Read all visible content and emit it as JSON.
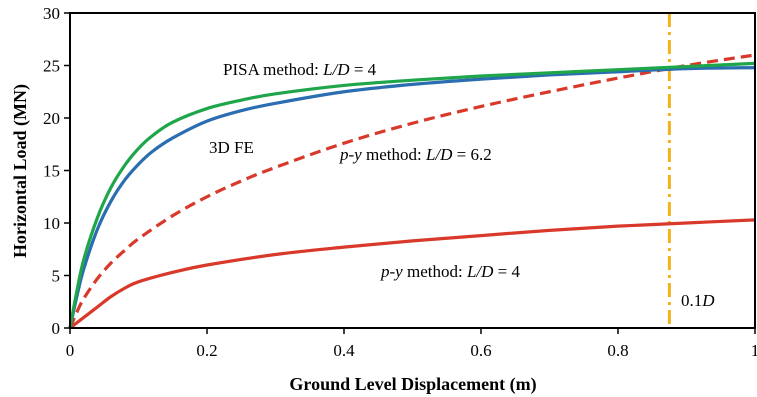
{
  "chart_data": {
    "type": "line",
    "title": "",
    "xlabel": "Ground Level Displacement (m)",
    "ylabel": "Horizontal Load (MN)",
    "xlim": [
      0,
      1
    ],
    "ylim": [
      0,
      30
    ],
    "xticks": [
      0,
      0.2,
      0.4,
      0.6,
      0.8,
      1
    ],
    "xtick_labels": [
      "0",
      "0.2",
      "0.4",
      "0.6",
      "0.8",
      "1"
    ],
    "yticks": [
      0,
      5,
      10,
      15,
      20,
      25,
      30
    ],
    "ytick_labels": [
      "0",
      "5",
      "10",
      "15",
      "20",
      "25",
      "30"
    ],
    "grid": false,
    "legend": "none",
    "series": [
      {
        "key": "pisa",
        "color": "#1fa64a",
        "style": "solid",
        "x": [
          0,
          0.01,
          0.02,
          0.04,
          0.06,
          0.08,
          0.1,
          0.12,
          0.15,
          0.2,
          0.25,
          0.3,
          0.4,
          0.5,
          0.6,
          0.7,
          0.8,
          0.9,
          1.0
        ],
        "y": [
          0,
          3.5,
          6.5,
          10.5,
          13.4,
          15.5,
          17.1,
          18.3,
          19.6,
          20.9,
          21.7,
          22.3,
          23.1,
          23.6,
          24.0,
          24.3,
          24.6,
          24.9,
          25.2
        ]
      },
      {
        "key": "fe3d",
        "color": "#2a6db1",
        "style": "solid",
        "x": [
          0,
          0.01,
          0.02,
          0.04,
          0.06,
          0.08,
          0.1,
          0.12,
          0.15,
          0.2,
          0.25,
          0.3,
          0.4,
          0.5,
          0.6,
          0.7,
          0.8,
          0.9,
          1.0
        ],
        "y": [
          0,
          3.0,
          5.6,
          9.4,
          12.1,
          14.1,
          15.6,
          16.8,
          18.1,
          19.7,
          20.7,
          21.4,
          22.5,
          23.2,
          23.7,
          24.1,
          24.4,
          24.7,
          24.8
        ]
      },
      {
        "key": "py62",
        "color": "#d9392b",
        "style": "dashed",
        "x": [
          0,
          0.01,
          0.02,
          0.04,
          0.06,
          0.08,
          0.1,
          0.15,
          0.2,
          0.25,
          0.3,
          0.4,
          0.5,
          0.6,
          0.7,
          0.8,
          0.9,
          1.0
        ],
        "y": [
          0,
          1.5,
          2.8,
          4.7,
          6.2,
          7.4,
          8.5,
          10.7,
          12.5,
          14.0,
          15.3,
          17.6,
          19.5,
          21.1,
          22.5,
          23.8,
          25.0,
          26.0
        ]
      },
      {
        "key": "py4",
        "color": "#d9392b",
        "style": "solid",
        "x": [
          0,
          0.01,
          0.02,
          0.04,
          0.06,
          0.08,
          0.1,
          0.15,
          0.2,
          0.3,
          0.4,
          0.5,
          0.6,
          0.7,
          0.8,
          0.9,
          1.0
        ],
        "y": [
          0,
          0.5,
          1.0,
          2.0,
          3.0,
          3.8,
          4.4,
          5.3,
          6.0,
          7.0,
          7.7,
          8.3,
          8.8,
          9.3,
          9.7,
          10.0,
          10.3
        ]
      }
    ],
    "reference_line": {
      "x": 0.875,
      "color": "#f2b21c",
      "style": "dash-dot"
    },
    "annotations": {
      "pisa": {
        "text": "PISA method: ",
        "ratio": "L/D",
        "value": " = 4"
      },
      "fe3d": {
        "text": "3D FE"
      },
      "py62": {
        "prefix": "p-y",
        "text": " method: ",
        "ratio": "L/D",
        "value": " = 6.2"
      },
      "py4": {
        "prefix": "p-y",
        "text": " method: ",
        "ratio": "L/D",
        "value": " = 4"
      },
      "refline": {
        "text": "0.1",
        "suffix": "D"
      }
    }
  }
}
